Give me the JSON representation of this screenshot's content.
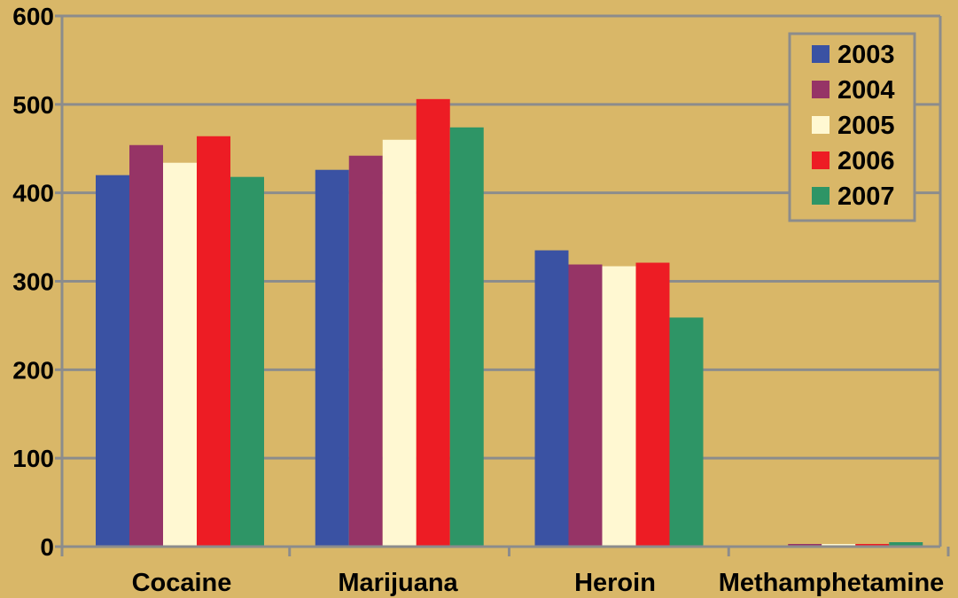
{
  "chart_data": {
    "type": "bar",
    "categories": [
      "Cocaine",
      "Marijuana",
      "Heroin",
      "Methamphetamine"
    ],
    "series": [
      {
        "name": "2003",
        "color": "#3a52a3",
        "values": [
          420,
          426,
          335,
          1
        ]
      },
      {
        "name": "2004",
        "color": "#963466",
        "values": [
          454,
          442,
          319,
          3
        ]
      },
      {
        "name": "2005",
        "color": "#fff8d2",
        "values": [
          434,
          460,
          317,
          3
        ]
      },
      {
        "name": "2006",
        "color": "#ed1c24",
        "values": [
          464,
          506,
          321,
          3
        ]
      },
      {
        "name": "2007",
        "color": "#2e9566",
        "values": [
          418,
          474,
          259,
          5
        ]
      }
    ],
    "yticks": [
      "0",
      "100",
      "200",
      "300",
      "400",
      "500",
      "600"
    ],
    "ylim": [
      0,
      600
    ],
    "grid": true,
    "legend_position": "top-right",
    "background_color": "#d9b768",
    "gridline_color": "#8c8c8c"
  }
}
